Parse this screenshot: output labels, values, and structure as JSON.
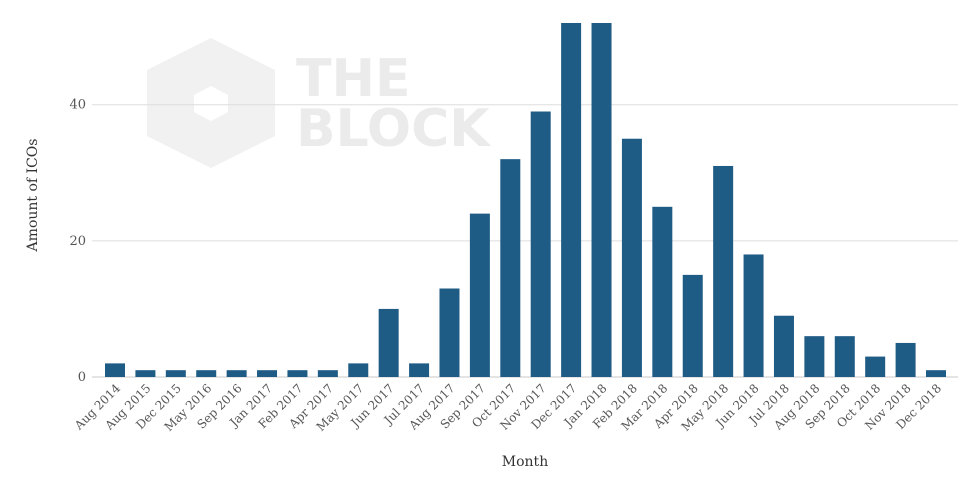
{
  "watermark": {
    "line1": "THE",
    "line2": "BLOCK"
  },
  "chart_data": {
    "type": "bar",
    "xlabel": "Month",
    "ylabel": "Amount of ICOs",
    "ylim": [
      0,
      52
    ],
    "yticks": [
      0,
      20,
      40
    ],
    "grid": true,
    "bar_color": "#1f5c85",
    "categories": [
      "Aug 2014",
      "Aug 2015",
      "Dec 2015",
      "May 2016",
      "Sep 2016",
      "Jan 2017",
      "Feb 2017",
      "Apr 2017",
      "May 2017",
      "Jun 2017",
      "Jul 2017",
      "Aug 2017",
      "Sep 2017",
      "Oct 2017",
      "Nov 2017",
      "Dec 2017",
      "Jan 2018",
      "Feb 2018",
      "Mar 2018",
      "Apr 2018",
      "May 2018",
      "Jun 2018",
      "Jul 2018",
      "Aug 2018",
      "Sep 2018",
      "Oct 2018",
      "Nov 2018",
      "Dec 2018"
    ],
    "values": [
      2,
      1,
      1,
      1,
      1,
      1,
      1,
      1,
      2,
      10,
      2,
      13,
      24,
      32,
      39,
      52,
      52,
      35,
      25,
      15,
      31,
      18,
      9,
      6,
      6,
      3,
      5,
      1
    ]
  }
}
